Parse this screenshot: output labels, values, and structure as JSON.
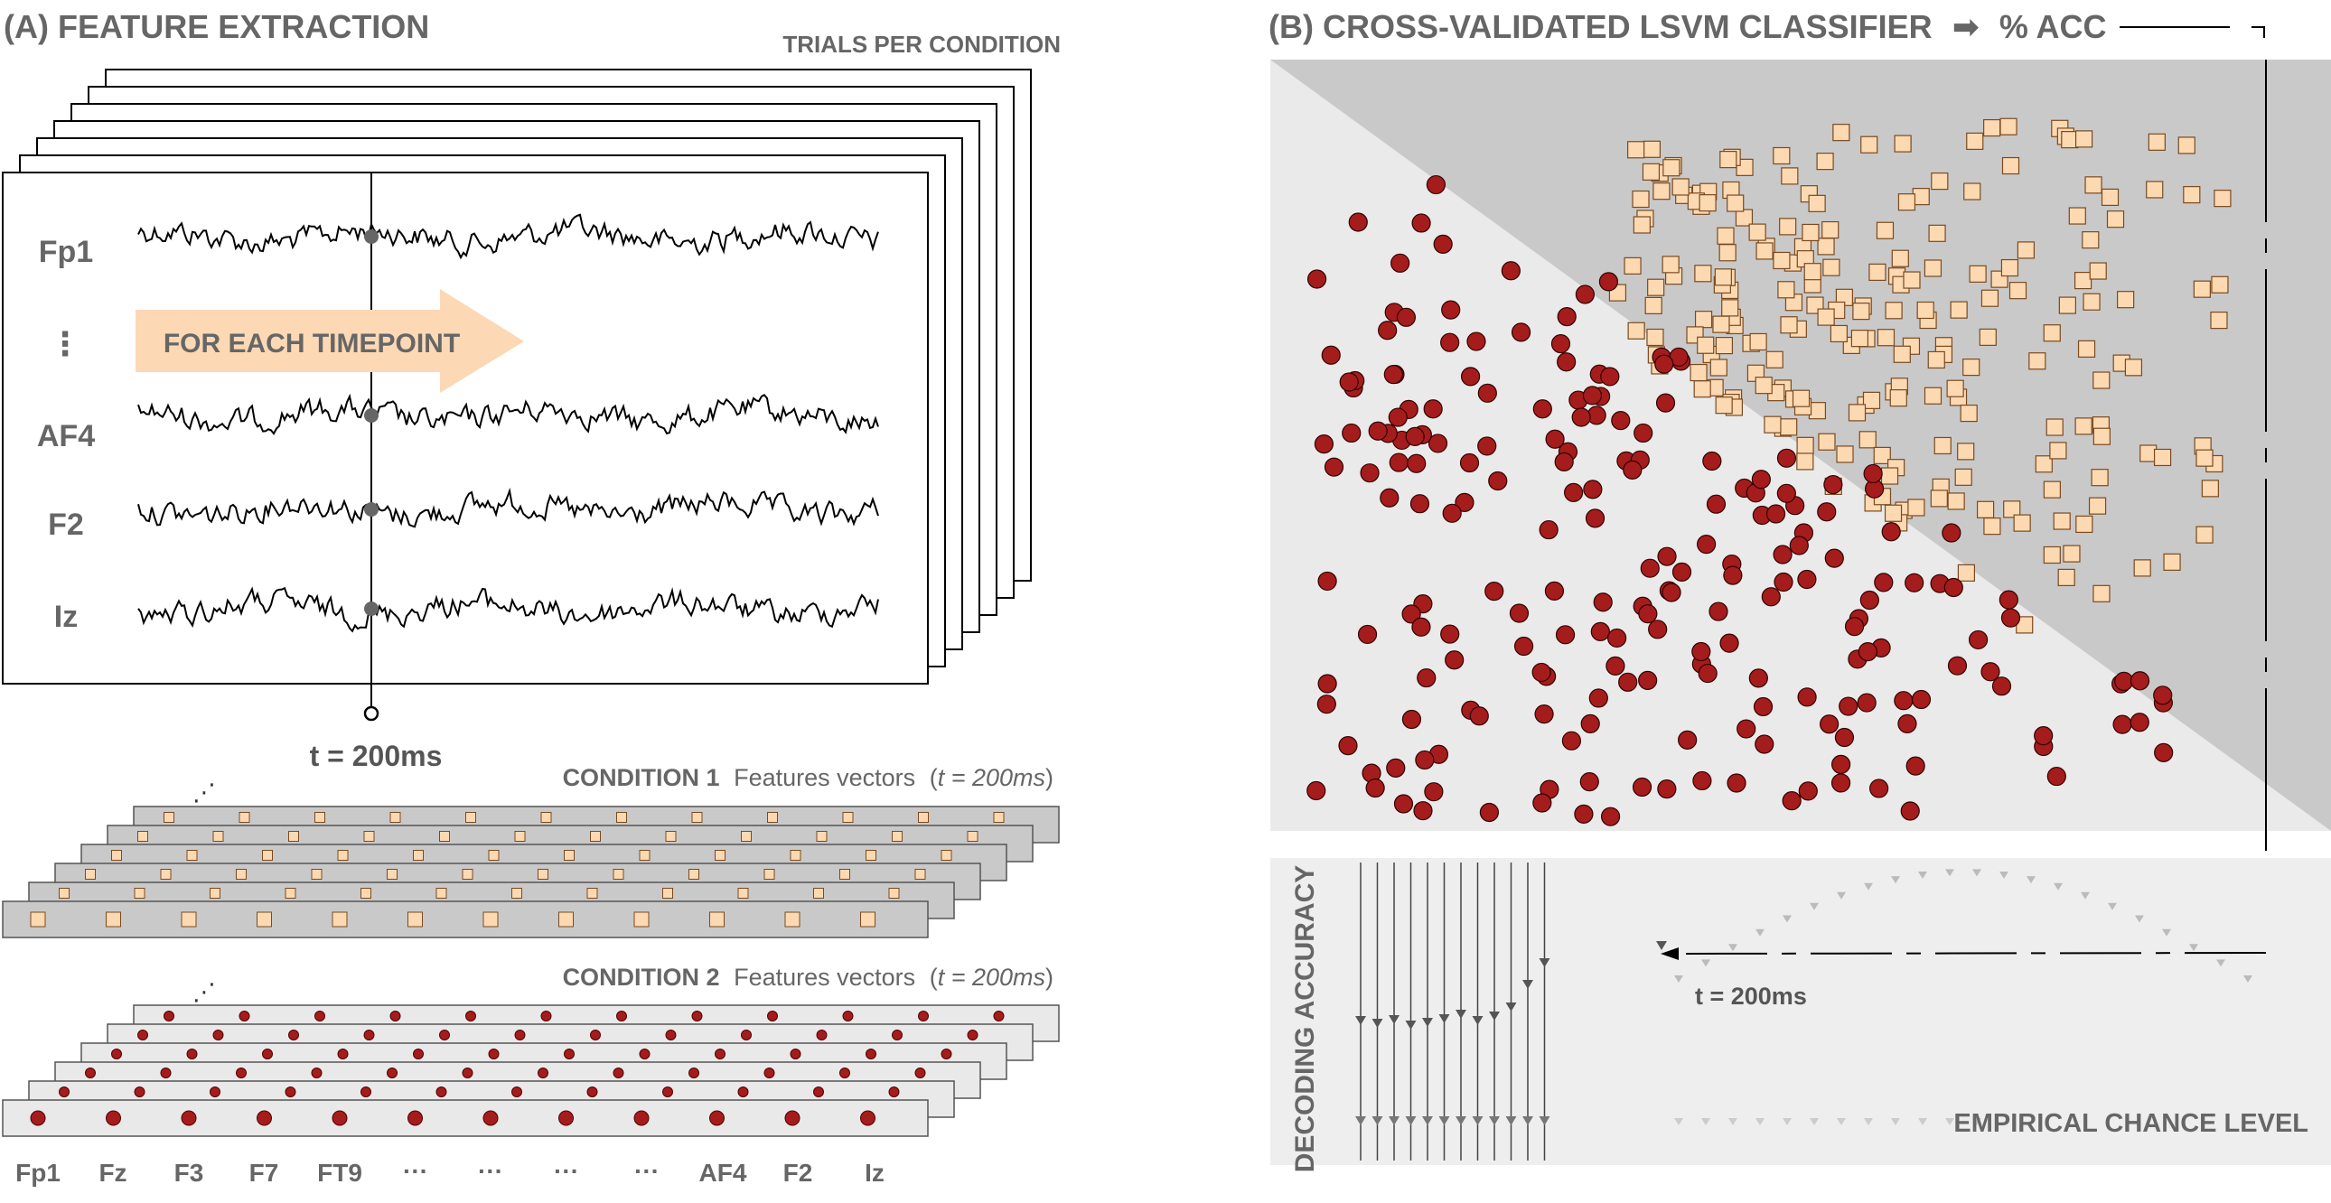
{
  "panel_a": {
    "title": "(A) FEATURE EXTRACTION",
    "trials_label": "TRIALS PER CONDITION",
    "channels": [
      "Fp1",
      "⋮",
      "AF4",
      "F2",
      "Iz"
    ],
    "arrow_label": "FOR EACH TIMEPOINT",
    "time_label": "t = 200ms",
    "condition1": {
      "name": "CONDITION 1",
      "desc": "Features vectors",
      "paren_open": "(",
      "time": "t = 200ms",
      "paren_close": ")"
    },
    "condition2": {
      "name": "CONDITION 2",
      "desc": "Features vectors",
      "paren_open": "(",
      "time": "t = 200ms",
      "paren_close": ")"
    },
    "ellipsis_marker": "⋰",
    "feature_labels": [
      "Fp1",
      "Fz",
      "F3",
      "F7",
      "FT9",
      "···",
      "···",
      "···",
      "···",
      "AF4",
      "F2",
      "Iz"
    ]
  },
  "panel_b": {
    "title": "(B) CROSS-VALIDATED LSVM CLASSIFIER",
    "arrow_glyph": "➡",
    "acc_label": "% ACC",
    "y_label": "DECODING ACCURACY",
    "time_label": "t = 200ms",
    "chance_label": "EMPIRICAL CHANCE LEVEL"
  },
  "colors": {
    "condition1_fill": "#fdd9b2",
    "condition2_fill": "#a51c1c",
    "arrow_fill": "#fcd8b4",
    "region_dark": "#c9c9c9",
    "region_light": "#eaeaea",
    "text_gray": "#666666"
  }
}
